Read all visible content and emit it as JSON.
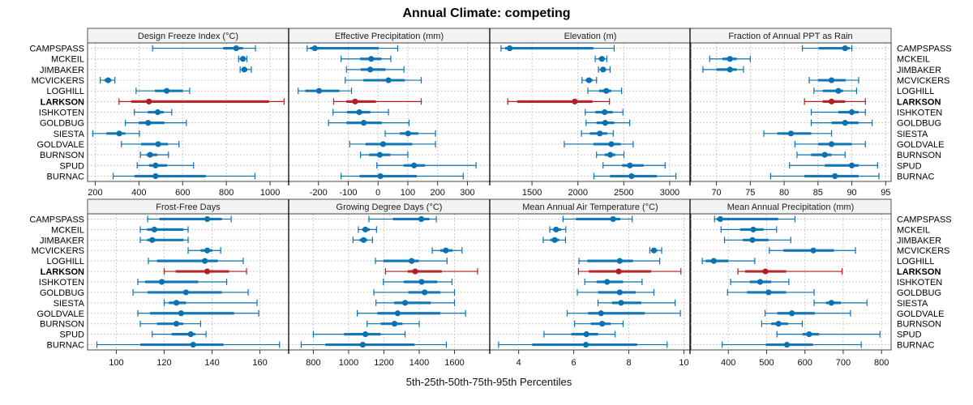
{
  "chart_data": {
    "type": "dotplot-percentiles",
    "title": "Annual Climate: competing",
    "xlabel": "5th-25th-50th-75th-95th Percentiles",
    "ylabel": "",
    "grid": true,
    "legend": "none",
    "colors": {
      "default": "#0a71b3",
      "highlight": "#b31e24"
    },
    "highlight_category": "LARKSON",
    "categories": [
      "CAMPSPASS",
      "MCKEIL",
      "JIMBAKER",
      "MCVICKERS",
      "LOGHILL",
      "LARKSON",
      "ISHKOTEN",
      "GOLDBUG",
      "SIESTA",
      "GOLDVALE",
      "BURNSON",
      "SPUD",
      "BURNAC"
    ],
    "percentile_order": [
      "p5",
      "p25",
      "p50",
      "p75",
      "p95"
    ],
    "panels": [
      {
        "title": "Design Freeze Index (°C)",
        "xlim": [
          165,
          1085
        ],
        "ticks": [
          200,
          400,
          600,
          800,
          1000
        ],
        "values": [
          [
            462,
            785,
            845,
            876,
            933
          ],
          [
            856,
            863,
            876,
            887,
            894
          ],
          [
            863,
            871,
            882,
            896,
            914
          ],
          [
            223,
            242,
            259,
            274,
            290
          ],
          [
            387,
            473,
            527,
            601,
            632
          ],
          [
            309,
            365,
            446,
            995,
            1064
          ],
          [
            379,
            441,
            486,
            513,
            550
          ],
          [
            338,
            399,
            442,
            517,
            617
          ],
          [
            189,
            251,
            310,
            338,
            402
          ],
          [
            320,
            410,
            488,
            533,
            583
          ],
          [
            407,
            435,
            451,
            484,
            535
          ],
          [
            392,
            446,
            476,
            529,
            650
          ],
          [
            282,
            379,
            476,
            706,
            931
          ]
        ]
      },
      {
        "title": "Effective Precipitation (mm)",
        "xlim": [
          -300,
          375
        ],
        "ticks": [
          -200,
          -100,
          0,
          100,
          200,
          300
        ],
        "values": [
          [
            -238,
            -228,
            -212,
            2,
            66
          ],
          [
            -124,
            -60,
            -23,
            11,
            43
          ],
          [
            -106,
            -58,
            -26,
            25,
            87
          ],
          [
            -110,
            -49,
            35,
            90,
            145
          ],
          [
            -268,
            -244,
            -198,
            -130,
            -89
          ],
          [
            -149,
            -106,
            -77,
            -7,
            145
          ],
          [
            -151,
            -104,
            -63,
            -26,
            35
          ],
          [
            -166,
            -106,
            -48,
            13,
            104
          ],
          [
            24,
            73,
            101,
            135,
            193
          ],
          [
            -95,
            -42,
            17,
            115,
            193
          ],
          [
            -59,
            -30,
            6,
            41,
            100
          ],
          [
            -4,
            86,
            121,
            158,
            329
          ],
          [
            -124,
            -62,
            8,
            130,
            286
          ]
        ]
      },
      {
        "title": "Elevation (m)",
        "xlim": [
          1040,
          3230
        ],
        "ticks": [
          1500,
          2000,
          2500,
          3000
        ],
        "values": [
          [
            1163,
            1207,
            1257,
            2168,
            2395
          ],
          [
            2189,
            2227,
            2262,
            2285,
            2315
          ],
          [
            2224,
            2250,
            2274,
            2306,
            2350
          ],
          [
            2045,
            2086,
            2121,
            2159,
            2203
          ],
          [
            2109,
            2232,
            2309,
            2364,
            2476
          ],
          [
            1236,
            1339,
            1966,
            2159,
            2344
          ],
          [
            2080,
            2191,
            2291,
            2379,
            2490
          ],
          [
            2089,
            2203,
            2297,
            2394,
            2564
          ],
          [
            2039,
            2130,
            2238,
            2320,
            2385
          ],
          [
            1852,
            2168,
            2364,
            2467,
            2602
          ],
          [
            2203,
            2291,
            2353,
            2408,
            2502
          ],
          [
            2274,
            2482,
            2567,
            2716,
            2950
          ],
          [
            2174,
            2350,
            2584,
            2862,
            3068
          ]
        ]
      },
      {
        "title": "Fraction of Annual PPT as Rain",
        "xlim": [
          66.1,
          95.8
        ],
        "ticks": [
          70,
          75,
          80,
          85,
          90,
          95
        ],
        "values": [
          [
            82.7,
            85.1,
            89.0,
            89.7,
            90.0
          ],
          [
            69.0,
            70.9,
            72.0,
            73.0,
            75.0
          ],
          [
            68.0,
            70.0,
            72.0,
            73.0,
            74.0
          ],
          [
            83.7,
            85.0,
            87.0,
            89.1,
            91.0
          ],
          [
            84.4,
            85.7,
            88.0,
            88.7,
            90.7
          ],
          [
            83.0,
            85.7,
            87.0,
            89.0,
            92.0
          ],
          [
            84.0,
            88.0,
            90.0,
            91.0,
            92.0
          ],
          [
            84.0,
            87.0,
            89.0,
            91.0,
            93.0
          ],
          [
            77.0,
            79.0,
            81.0,
            84.0,
            87.0
          ],
          [
            81.6,
            85.0,
            87.0,
            90.0,
            92.0
          ],
          [
            81.9,
            84.0,
            86.0,
            87.0,
            89.0
          ],
          [
            80.8,
            86.0,
            90.0,
            91.0,
            93.8
          ],
          [
            78.0,
            83.0,
            87.5,
            91.0,
            94.0
          ]
        ]
      },
      {
        "title": "Frost-Free Days",
        "xlim": [
          88,
          172
        ],
        "ticks": [
          100,
          120,
          140,
          160
        ],
        "values": [
          [
            113.1,
            118.0,
            138.0,
            144.1,
            148.0
          ],
          [
            110.0,
            112.9,
            115.9,
            128.1,
            130.0
          ],
          [
            110.0,
            112.9,
            115.0,
            128.1,
            130.0
          ],
          [
            130.0,
            135.2,
            138.0,
            140.1,
            143.6
          ],
          [
            113.4,
            117.0,
            137.0,
            142.4,
            153.0
          ],
          [
            120.0,
            124.8,
            138.0,
            147.1,
            154.4
          ],
          [
            109.0,
            112.0,
            119.0,
            134.2,
            146.1
          ],
          [
            107.0,
            113.1,
            129.1,
            144.1,
            155.1
          ],
          [
            120.0,
            122.0,
            125.1,
            129.1,
            158.8
          ],
          [
            109.0,
            114.1,
            127.1,
            149.2,
            159.5
          ],
          [
            110.0,
            117.0,
            125.1,
            128.0,
            135.2
          ],
          [
            115.0,
            123.1,
            131.1,
            133.0,
            137.5
          ],
          [
            91.9,
            110.0,
            132.1,
            144.8,
            168.2
          ]
        ]
      },
      {
        "title": "Growing Degree Days (°C)",
        "xlim": [
          660,
          1800
        ],
        "ticks": [
          800,
          1000,
          1200,
          1400,
          1600
        ],
        "values": [
          [
            1115,
            1251,
            1412,
            1458,
            1497
          ],
          [
            1055,
            1077,
            1095,
            1120,
            1158
          ],
          [
            1025,
            1062,
            1085,
            1105,
            1135
          ],
          [
            1474,
            1520,
            1551,
            1589,
            1643
          ],
          [
            1152,
            1197,
            1357,
            1397,
            1558
          ],
          [
            1209,
            1335,
            1377,
            1528,
            1731
          ],
          [
            1197,
            1312,
            1414,
            1502,
            1586
          ],
          [
            1143,
            1338,
            1431,
            1520,
            1600
          ],
          [
            1155,
            1258,
            1320,
            1466,
            1600
          ],
          [
            1049,
            1163,
            1278,
            1520,
            1663
          ],
          [
            1105,
            1182,
            1260,
            1305,
            1400
          ],
          [
            800,
            974,
            1095,
            1182,
            1320
          ],
          [
            731,
            868,
            1080,
            1374,
            1554
          ]
        ]
      },
      {
        "title": "Mean Annual Air Temperature (°C)",
        "xlim": [
          2.95,
          10.25
        ],
        "ticks": [
          4,
          6,
          8,
          10
        ],
        "values": [
          [
            5.61,
            6.08,
            7.43,
            7.69,
            8.12
          ],
          [
            5.13,
            5.25,
            5.36,
            5.54,
            5.71
          ],
          [
            4.89,
            5.15,
            5.31,
            5.47,
            5.7
          ],
          [
            8.76,
            8.81,
            8.91,
            9.03,
            9.19
          ],
          [
            6.19,
            6.49,
            7.67,
            8.15,
            9.12
          ],
          [
            6.17,
            6.55,
            7.63,
            8.81,
            9.89
          ],
          [
            6.4,
            6.83,
            7.21,
            7.79,
            8.48
          ],
          [
            6.13,
            6.88,
            7.67,
            8.25,
            8.91
          ],
          [
            6.88,
            7.39,
            7.72,
            8.45,
            9.68
          ],
          [
            5.76,
            6.52,
            6.99,
            8.58,
            9.87
          ],
          [
            6.03,
            6.62,
            7.03,
            7.34,
            7.79
          ],
          [
            4.92,
            5.91,
            6.46,
            6.88,
            7.5
          ],
          [
            3.27,
            4.49,
            6.44,
            8.3,
            9.39
          ]
        ]
      },
      {
        "title": "Mean Annual Precipitation (mm)",
        "xlim": [
          300,
          825
        ],
        "ticks": [
          400,
          500,
          600,
          700,
          800
        ],
        "values": [
          [
            364,
            369,
            379,
            530,
            574
          ],
          [
            381,
            431,
            465,
            492,
            526
          ],
          [
            390,
            438,
            463,
            505,
            563
          ],
          [
            507,
            544,
            622,
            676,
            732
          ],
          [
            332,
            341,
            362,
            400,
            469
          ],
          [
            425,
            444,
            497,
            551,
            697
          ],
          [
            406,
            456,
            483,
            512,
            558
          ],
          [
            398,
            449,
            505,
            551,
            624
          ],
          [
            624,
            655,
            669,
            694,
            762
          ],
          [
            496,
            528,
            566,
            626,
            719
          ],
          [
            487,
            512,
            531,
            556,
            593
          ],
          [
            527,
            594,
            611,
            637,
            796
          ],
          [
            384,
            498,
            553,
            621,
            747
          ]
        ]
      }
    ]
  }
}
